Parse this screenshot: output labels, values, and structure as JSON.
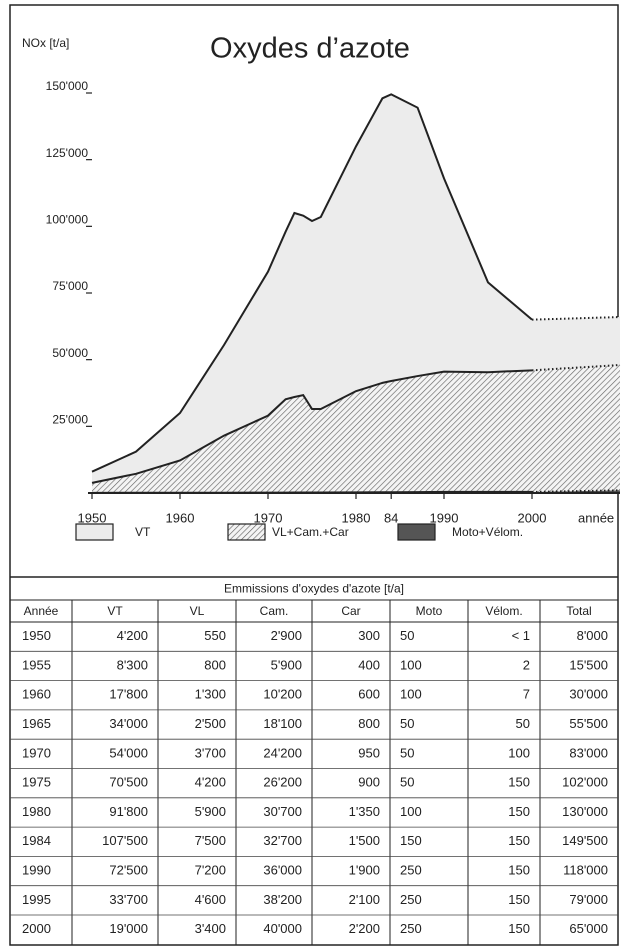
{
  "chart_data": {
    "type": "stacked_area",
    "title": "Oxydes d’azote",
    "y_label": "NOx [t/a]",
    "x_label": "année",
    "x": [
      1950,
      1955,
      1960,
      1965,
      1970,
      1972,
      1973,
      1974,
      1975,
      1976,
      1980,
      1983,
      1984,
      1987,
      1990,
      1995,
      2000,
      2010
    ],
    "series": [
      {
        "name": "Moto+Vélom.",
        "color": "#555555",
        "fill": "solid",
        "values": [
          50,
          100,
          100,
          100,
          150,
          150,
          200,
          200,
          200,
          200,
          250,
          300,
          300,
          350,
          400,
          400,
          400,
          1000
        ]
      },
      {
        "name": "VL+Cam.+Car",
        "color": "#d8d8d8",
        "fill": "hatch",
        "values": [
          3750,
          7100,
          12100,
          21400,
          28850,
          35000,
          35800,
          36500,
          31300,
          31300,
          37950,
          41000,
          41700,
          43500,
          45100,
          44900,
          45600,
          47000
        ]
      },
      {
        "name": "VT",
        "color": "#ececec",
        "fill": "solid",
        "values": [
          4200,
          8300,
          17800,
          34000,
          54000,
          62850,
          69000,
          67300,
          70500,
          72000,
          91800,
          106700,
          107500,
          100650,
          72500,
          33700,
          19000,
          18000
        ]
      }
    ],
    "projection_from": 2000,
    "xlim": [
      1950,
      2010
    ],
    "xticks": [
      1950,
      1960,
      1970,
      1980,
      {
        "value": 1984,
        "label": "84"
      },
      1990,
      2000
    ],
    "ylim": [
      0,
      150000
    ],
    "yticks": [
      {
        "value": 25000,
        "label": "25'000"
      },
      {
        "value": 50000,
        "label": "50'000"
      },
      {
        "value": 75000,
        "label": "75'000"
      },
      {
        "value": 100000,
        "label": "100'000"
      },
      {
        "value": 125000,
        "label": "125'000"
      },
      {
        "value": 150000,
        "label": "150'000"
      }
    ]
  },
  "table": {
    "caption": "Emmissions d'oxydes d'azote  [t/a]",
    "columns": [
      "Année",
      "VT",
      "VL",
      "Cam.",
      "Car",
      "Moto",
      "Vélom.",
      "Total"
    ],
    "rows": [
      [
        "1950",
        "4'200",
        "550",
        "2'900",
        "300",
        "50",
        "< 1",
        "8'000"
      ],
      [
        "1955",
        "8'300",
        "800",
        "5'900",
        "400",
        "100",
        "2",
        "15'500"
      ],
      [
        "1960",
        "17'800",
        "1'300",
        "10'200",
        "600",
        "100",
        "7",
        "30'000"
      ],
      [
        "1965",
        "34'000",
        "2'500",
        "18'100",
        "800",
        "50",
        "50",
        "55'500"
      ],
      [
        "1970",
        "54'000",
        "3'700",
        "24'200",
        "950",
        "50",
        "100",
        "83'000"
      ],
      [
        "1975",
        "70'500",
        "4'200",
        "26'200",
        "900",
        "50",
        "150",
        "102'000"
      ],
      [
        "1980",
        "91'800",
        "5'900",
        "30'700",
        "1'350",
        "100",
        "150",
        "130'000"
      ],
      [
        "1984",
        "107'500",
        "7'500",
        "32'700",
        "1'500",
        "150",
        "150",
        "149'500"
      ],
      [
        "1990",
        "72'500",
        "7'200",
        "36'000",
        "1'900",
        "250",
        "150",
        "118'000"
      ],
      [
        "1995",
        "33'700",
        "4'600",
        "38'200",
        "2'100",
        "250",
        "150",
        "79'000"
      ],
      [
        "2000",
        "19'000",
        "3'400",
        "40'000",
        "2'200",
        "250",
        "150",
        "65'000"
      ]
    ]
  }
}
